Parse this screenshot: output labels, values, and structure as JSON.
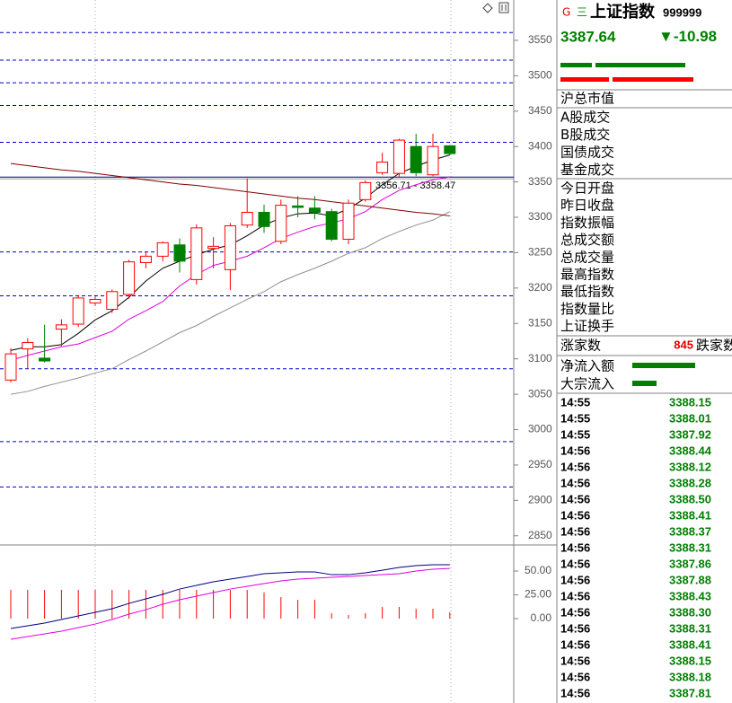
{
  "chart_data": [
    {
      "type": "candlestick",
      "ylim": [
        2837,
        3607
      ],
      "yticks": [
        2850,
        2900,
        2950,
        3000,
        3050,
        3100,
        3150,
        3200,
        3250,
        3300,
        3350,
        3400,
        3450,
        3500,
        3550
      ],
      "open": [
        3070,
        3114,
        3101,
        3142,
        3149,
        3179,
        3170,
        3191,
        3236,
        3245,
        3261,
        3212,
        3256,
        3226,
        3289,
        3307,
        3266,
        3316,
        3313,
        3308,
        3269,
        3325,
        3363,
        3362,
        3400,
        3360,
        3401
      ],
      "high": [
        3115,
        3129,
        3148,
        3156,
        3190,
        3188,
        3198,
        3240,
        3252,
        3266,
        3270,
        3290,
        3272,
        3292,
        3355,
        3318,
        3325,
        3330,
        3330,
        3312,
        3325,
        3352,
        3391,
        3411,
        3418,
        3418,
        3402
      ],
      "low": [
        3067,
        3086,
        3095,
        3118,
        3145,
        3175,
        3165,
        3185,
        3228,
        3238,
        3222,
        3205,
        3228,
        3197,
        3285,
        3278,
        3262,
        3300,
        3297,
        3266,
        3262,
        3322,
        3360,
        3356,
        3358,
        3358,
        3388
      ],
      "close": [
        3107,
        3123,
        3097,
        3148,
        3186,
        3184,
        3195,
        3237,
        3245,
        3264,
        3238,
        3285,
        3259,
        3288,
        3307,
        3287,
        3317,
        3314,
        3307,
        3269,
        3320,
        3349,
        3378,
        3409,
        3363,
        3400,
        3390
      ],
      "up_color": "#ff0000",
      "down_color": "#008000",
      "series": [
        {
          "color": "#000000",
          "values": [
            3112,
            3117,
            3117,
            3120,
            3136,
            3155,
            3168,
            3187,
            3210,
            3228,
            3238,
            3247,
            3255,
            3261,
            3274,
            3289,
            3299,
            3305,
            3306,
            3302,
            3312,
            3327,
            3346,
            3362,
            3372,
            3381,
            3388
          ]
        },
        {
          "color": "#e000e0",
          "values": [
            3098,
            3105,
            3111,
            3117,
            3121,
            3130,
            3139,
            3156,
            3168,
            3181,
            3203,
            3219,
            3232,
            3238,
            3245,
            3257,
            3270,
            3279,
            3287,
            3292,
            3298,
            3308,
            3325,
            3338,
            3346,
            3353,
            3357
          ]
        },
        {
          "color": "#909090",
          "values": [
            3050,
            3054,
            3061,
            3067,
            3073,
            3080,
            3086,
            3099,
            3111,
            3124,
            3137,
            3147,
            3160,
            3172,
            3184,
            3195,
            3209,
            3219,
            3228,
            3238,
            3249,
            3257,
            3270,
            3280,
            3289,
            3296,
            3308
          ]
        },
        {
          "color": "#800000",
          "values": [
            3376,
            3373,
            3370,
            3367,
            3365,
            3362,
            3359,
            3356,
            3353,
            3350,
            3347,
            3345,
            3342,
            3339,
            3336,
            3333,
            3330,
            3327,
            3325,
            3322,
            3319,
            3316,
            3313,
            3310,
            3307,
            3305,
            3302
          ]
        }
      ],
      "hlines": {
        "color": "#0000cc",
        "values": [
          3561,
          3522,
          3490,
          3458,
          3406,
          3251,
          3189,
          3086,
          2983,
          2919
        ]
      },
      "range_line": 3356.71,
      "range_label": "3356.71 - 3358.47"
    },
    {
      "type": "bar",
      "ylim": [
        -88.7,
        77.4
      ],
      "yticks": [
        {
          "value": 0,
          "label": "0.00"
        },
        {
          "value": 25,
          "label": "25.00"
        },
        {
          "value": 50,
          "label": "50.00"
        }
      ],
      "color": "#ff0000",
      "values": [
        30.2,
        30.2,
        30.2,
        30.2,
        30.2,
        30.2,
        30.2,
        30.2,
        30.2,
        30.2,
        30.2,
        30.2,
        30.2,
        30.2,
        30.2,
        27.4,
        22.6,
        19.8,
        19.8,
        5.7,
        3.8,
        5.7,
        12.3,
        12.3,
        10.4,
        10.4,
        6.6
      ],
      "series": [
        {
          "color": "#000080",
          "values": [
            -10.4,
            -7.5,
            -4.7,
            -0.9,
            2.8,
            6.6,
            10.4,
            16.0,
            20.8,
            25.5,
            31.1,
            34.9,
            38.7,
            41.5,
            44.3,
            47.2,
            48.1,
            49.1,
            49.1,
            46.2,
            46.2,
            48.1,
            50.9,
            53.8,
            55.7,
            56.6,
            56.6
          ]
        },
        {
          "color": "#e000e0",
          "values": [
            -21.7,
            -18.9,
            -16.0,
            -13.2,
            -9.4,
            -5.7,
            -0.9,
            4.7,
            9.4,
            15.1,
            19.8,
            23.6,
            27.4,
            31.1,
            34.0,
            36.8,
            39.6,
            41.5,
            42.5,
            43.4,
            44.3,
            45.3,
            46.2,
            47.2,
            50.0,
            51.9,
            52.8
          ]
        }
      ]
    }
  ],
  "quote_panel": {
    "flag": "G",
    "menu": "三",
    "name": "上证指数",
    "code": "999999",
    "price": 3387.64,
    "change_arrow": "▼",
    "change": -10.98,
    "market_cap_label": "沪总市值",
    "turnover_labels": [
      "A股成交",
      "B股成交",
      "国债成交",
      "基金成交"
    ],
    "stats_labels": [
      "今日开盘",
      "昨日收盘",
      "指数振幅",
      "总成交额",
      "总成交量",
      "最高指数",
      "最低指数",
      "指数量比",
      "上证换手"
    ],
    "advance_label": "涨家数",
    "advance_count": 845,
    "decline_label": "跌家数",
    "flow_labels": [
      "净流入额",
      "大宗流入"
    ],
    "ticks": [
      [
        "14:55",
        "3388.15"
      ],
      [
        "14:55",
        "3388.01"
      ],
      [
        "14:55",
        "3387.92"
      ],
      [
        "14:56",
        "3388.44"
      ],
      [
        "14:56",
        "3388.12"
      ],
      [
        "14:56",
        "3388.28"
      ],
      [
        "14:56",
        "3388.50"
      ],
      [
        "14:56",
        "3388.41"
      ],
      [
        "14:56",
        "3388.37"
      ],
      [
        "14:56",
        "3388.31"
      ],
      [
        "14:56",
        "3387.86"
      ],
      [
        "14:56",
        "3387.88"
      ],
      [
        "14:56",
        "3388.43"
      ],
      [
        "14:56",
        "3388.30"
      ],
      [
        "14:56",
        "3388.31"
      ],
      [
        "14:56",
        "3388.41"
      ],
      [
        "14:56",
        "3388.15"
      ],
      [
        "14:56",
        "3388.18"
      ],
      [
        "14:56",
        "3387.81"
      ]
    ]
  }
}
